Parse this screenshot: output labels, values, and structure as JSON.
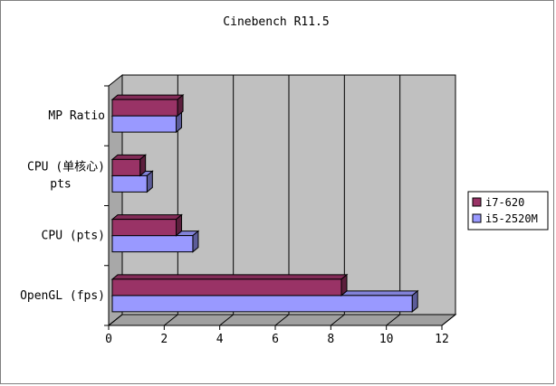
{
  "chart_data": {
    "type": "bar",
    "orientation": "horizontal",
    "three_d": true,
    "title": "Cinebench R11.5",
    "xlabel": "",
    "ylabel": "",
    "xlim": [
      0,
      12
    ],
    "xticks": [
      0,
      2,
      4,
      6,
      8,
      10,
      12
    ],
    "grid": true,
    "legend_position": "right",
    "categories": [
      {
        "label": "MP Ratio"
      },
      {
        "label": "CPU (单核心)",
        "label2": "pts"
      },
      {
        "label": "CPU   (pts)"
      },
      {
        "label": "OpenGL (fps)"
      }
    ],
    "series": [
      {
        "name": "i7-620",
        "color": "#993366",
        "values": [
          2.35,
          1.0,
          2.3,
          8.25
        ]
      },
      {
        "name": "i5-2520M",
        "color": "#9999ff",
        "values": [
          2.3,
          1.25,
          2.9,
          10.8
        ]
      }
    ]
  }
}
